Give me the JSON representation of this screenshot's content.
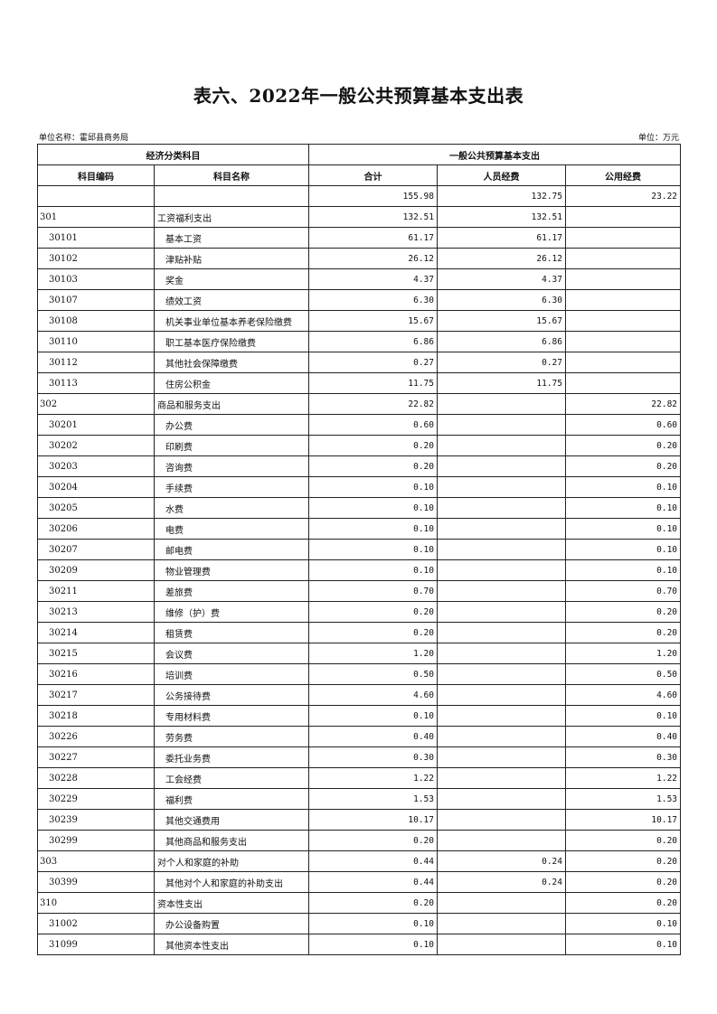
{
  "title": "表六、2022年一般公共预算基本支出表",
  "unit_name": "单位名称：霍邱县商务局",
  "unit": "单位：万元",
  "header": {
    "group1": "经济分类科目",
    "group2": "一般公共预算基本支出",
    "code": "科目编码",
    "name": "科目名称",
    "total": "合计",
    "personnel": "人员经费",
    "public": "公用经费"
  },
  "rows": [
    {
      "code": "",
      "name": "",
      "total": "155.98",
      "personnel": "132.75",
      "public": "23.22",
      "level": 0
    },
    {
      "code": "301",
      "name": "工资福利支出",
      "total": "132.51",
      "personnel": "132.51",
      "public": "",
      "level": 0
    },
    {
      "code": "30101",
      "name": "基本工资",
      "total": "61.17",
      "personnel": "61.17",
      "public": "",
      "level": 1
    },
    {
      "code": "30102",
      "name": "津贴补贴",
      "total": "26.12",
      "personnel": "26.12",
      "public": "",
      "level": 1
    },
    {
      "code": "30103",
      "name": "奖金",
      "total": "4.37",
      "personnel": "4.37",
      "public": "",
      "level": 1
    },
    {
      "code": "30107",
      "name": "绩效工资",
      "total": "6.30",
      "personnel": "6.30",
      "public": "",
      "level": 1
    },
    {
      "code": "30108",
      "name": "机关事业单位基本养老保险缴费",
      "total": "15.67",
      "personnel": "15.67",
      "public": "",
      "level": 1
    },
    {
      "code": "30110",
      "name": "职工基本医疗保险缴费",
      "total": "6.86",
      "personnel": "6.86",
      "public": "",
      "level": 1
    },
    {
      "code": "30112",
      "name": "其他社会保障缴费",
      "total": "0.27",
      "personnel": "0.27",
      "public": "",
      "level": 1
    },
    {
      "code": "30113",
      "name": "住房公积金",
      "total": "11.75",
      "personnel": "11.75",
      "public": "",
      "level": 1
    },
    {
      "code": "302",
      "name": "商品和服务支出",
      "total": "22.82",
      "personnel": "",
      "public": "22.82",
      "level": 0
    },
    {
      "code": "30201",
      "name": "办公费",
      "total": "0.60",
      "personnel": "",
      "public": "0.60",
      "level": 1
    },
    {
      "code": "30202",
      "name": "印刷费",
      "total": "0.20",
      "personnel": "",
      "public": "0.20",
      "level": 1
    },
    {
      "code": "30203",
      "name": "咨询费",
      "total": "0.20",
      "personnel": "",
      "public": "0.20",
      "level": 1
    },
    {
      "code": "30204",
      "name": "手续费",
      "total": "0.10",
      "personnel": "",
      "public": "0.10",
      "level": 1
    },
    {
      "code": "30205",
      "name": "水费",
      "total": "0.10",
      "personnel": "",
      "public": "0.10",
      "level": 1
    },
    {
      "code": "30206",
      "name": "电费",
      "total": "0.10",
      "personnel": "",
      "public": "0.10",
      "level": 1
    },
    {
      "code": "30207",
      "name": "邮电费",
      "total": "0.10",
      "personnel": "",
      "public": "0.10",
      "level": 1
    },
    {
      "code": "30209",
      "name": "物业管理费",
      "total": "0.10",
      "personnel": "",
      "public": "0.10",
      "level": 1
    },
    {
      "code": "30211",
      "name": "差旅费",
      "total": "0.70",
      "personnel": "",
      "public": "0.70",
      "level": 1
    },
    {
      "code": "30213",
      "name": "维修（护）费",
      "total": "0.20",
      "personnel": "",
      "public": "0.20",
      "level": 1
    },
    {
      "code": "30214",
      "name": "租赁费",
      "total": "0.20",
      "personnel": "",
      "public": "0.20",
      "level": 1
    },
    {
      "code": "30215",
      "name": "会议费",
      "total": "1.20",
      "personnel": "",
      "public": "1.20",
      "level": 1
    },
    {
      "code": "30216",
      "name": "培训费",
      "total": "0.50",
      "personnel": "",
      "public": "0.50",
      "level": 1
    },
    {
      "code": "30217",
      "name": "公务接待费",
      "total": "4.60",
      "personnel": "",
      "public": "4.60",
      "level": 1
    },
    {
      "code": "30218",
      "name": "专用材料费",
      "total": "0.10",
      "personnel": "",
      "public": "0.10",
      "level": 1
    },
    {
      "code": "30226",
      "name": "劳务费",
      "total": "0.40",
      "personnel": "",
      "public": "0.40",
      "level": 1
    },
    {
      "code": "30227",
      "name": "委托业务费",
      "total": "0.30",
      "personnel": "",
      "public": "0.30",
      "level": 1
    },
    {
      "code": "30228",
      "name": "工会经费",
      "total": "1.22",
      "personnel": "",
      "public": "1.22",
      "level": 1
    },
    {
      "code": "30229",
      "name": "福利费",
      "total": "1.53",
      "personnel": "",
      "public": "1.53",
      "level": 1
    },
    {
      "code": "30239",
      "name": "其他交通费用",
      "total": "10.17",
      "personnel": "",
      "public": "10.17",
      "level": 1
    },
    {
      "code": "30299",
      "name": "其他商品和服务支出",
      "total": "0.20",
      "personnel": "",
      "public": "0.20",
      "level": 1
    },
    {
      "code": "303",
      "name": "对个人和家庭的补助",
      "total": "0.44",
      "personnel": "0.24",
      "public": "0.20",
      "level": 0
    },
    {
      "code": "30399",
      "name": "其他对个人和家庭的补助支出",
      "total": "0.44",
      "personnel": "0.24",
      "public": "0.20",
      "level": 1
    },
    {
      "code": "310",
      "name": "资本性支出",
      "total": "0.20",
      "personnel": "",
      "public": "0.20",
      "level": 0
    },
    {
      "code": "31002",
      "name": "办公设备购置",
      "total": "0.10",
      "personnel": "",
      "public": "0.10",
      "level": 1
    },
    {
      "code": "31099",
      "name": "其他资本性支出",
      "total": "0.10",
      "personnel": "",
      "public": "0.10",
      "level": 1
    }
  ]
}
